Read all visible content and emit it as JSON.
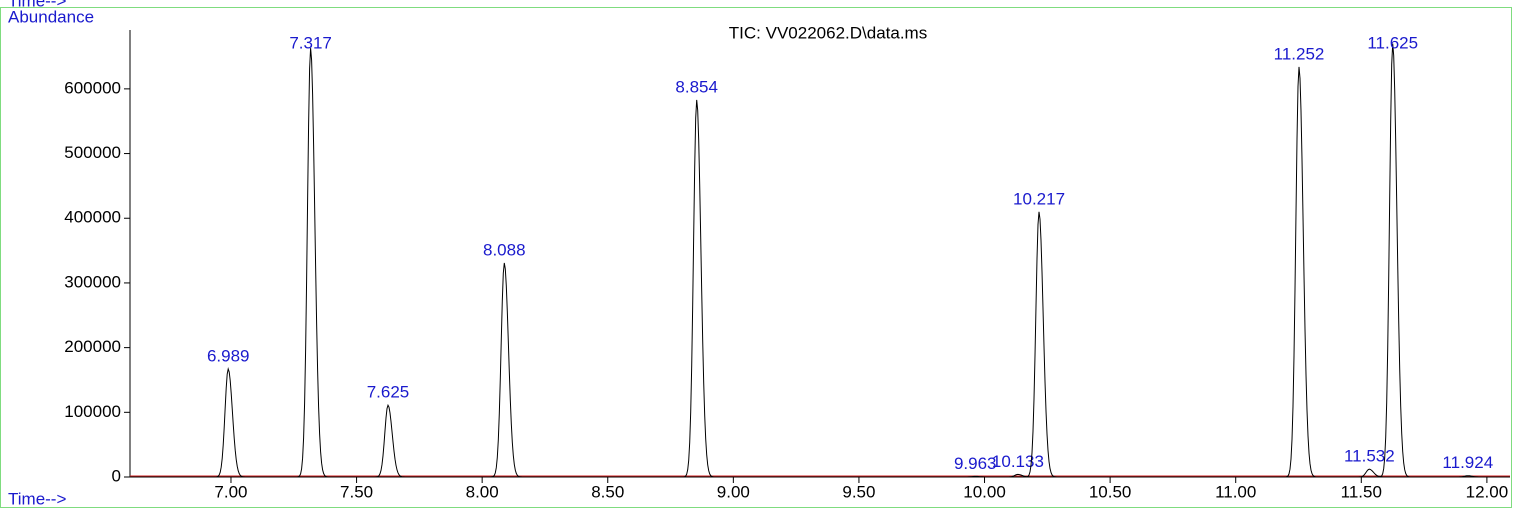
{
  "chart_data": {
    "type": "chromatogram",
    "title": "TIC: VV022062.D\\data.ms",
    "y_label": "Abundance",
    "x_label": "Time-->",
    "x": [
      6.989,
      7.317,
      7.625,
      8.088,
      8.854,
      9.963,
      10.133,
      10.217,
      11.252,
      11.532,
      11.625,
      11.924
    ],
    "values": [
      167000,
      663000,
      111000,
      331000,
      583000,
      1000,
      4000,
      410000,
      634000,
      12000,
      670000,
      2000
    ],
    "color": "#000000",
    "label_color": "#1a1acd",
    "xlim": [
      6.598,
      12.092
    ],
    "ylim": [
      0,
      691000
    ],
    "xticks": [
      {
        "value": 7,
        "label": "7.00"
      },
      {
        "value": 7.5,
        "label": "7.50"
      },
      {
        "value": 8,
        "label": "8.00"
      },
      {
        "value": 8.5,
        "label": "8.50"
      },
      {
        "value": 9,
        "label": "9.00"
      },
      {
        "value": 9.5,
        "label": "9.50"
      },
      {
        "value": 10,
        "label": "10.00"
      },
      {
        "value": 10.5,
        "label": "10.50"
      },
      {
        "value": 11,
        "label": "11.00"
      },
      {
        "value": 11.5,
        "label": "11.50"
      },
      {
        "value": 12,
        "label": "12.00"
      }
    ],
    "yticks": [
      0,
      100000,
      200000,
      300000,
      400000,
      500000,
      600000
    ]
  }
}
